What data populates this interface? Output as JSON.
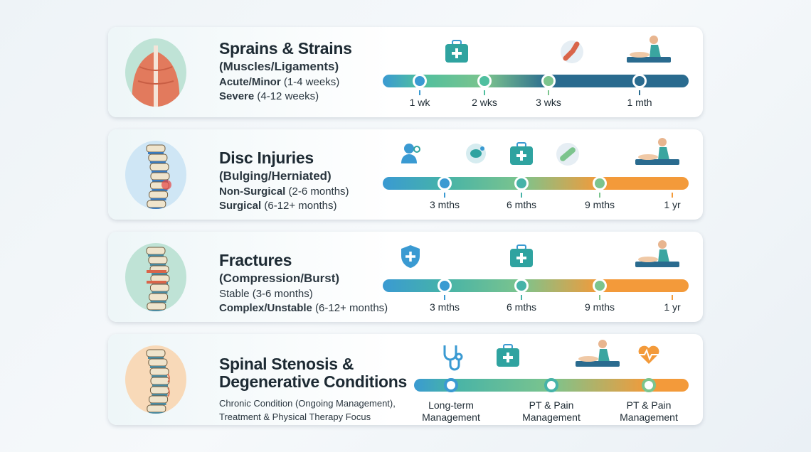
{
  "cards": [
    {
      "title": "Sprains & Strains",
      "subtitle": "(Muscles/Ligaments)",
      "lines": [
        {
          "bold": "Acute/Minor",
          "rest": " (1-4 weeks)"
        },
        {
          "bold": "Severe",
          "rest": " (4-12 weeks)"
        }
      ],
      "illustration": "back-muscles-illustration",
      "illustration_bg": "#bfe3d6",
      "bar_colors": [
        "#3a9ad2",
        "#4fbf9f",
        "#7cc48d",
        "#2a6b8f",
        "#2a6b8f"
      ],
      "milestones": [
        "1 wk",
        "2 wks",
        "3 wks",
        "1 mth"
      ],
      "icons": [
        "first-aid-kit-icon",
        "elbow-brace-icon",
        "physical-therapist-icon"
      ]
    },
    {
      "title": "Disc Injuries",
      "subtitle": "(Bulging/Herniated)",
      "lines": [
        {
          "bold": "Non-Surgical",
          "rest": " (2-6 months)"
        },
        {
          "bold": "Surgical",
          "rest": " (6-12+ months)"
        }
      ],
      "illustration": "herniated-disc-spine-illustration",
      "illustration_bg": "#cfe6f5",
      "bar_colors": [
        "#3a9ad2",
        "#46b3a8",
        "#7cc48d",
        "#f39a3a",
        "#f39a3a"
      ],
      "milestones": [
        "3 mths",
        "6 mths",
        "9 mths",
        "1 yr"
      ],
      "icons": [
        "doctor-consult-icon",
        "disc-icon",
        "first-aid-kit-icon",
        "bandage-icon",
        "physical-therapist-icon"
      ]
    },
    {
      "title": "Fractures",
      "subtitle": "(Compression/Burst)",
      "lines": [
        {
          "bold": "",
          "rest": "Stable (3-6 months)"
        },
        {
          "bold": "Complex/Unstable",
          "rest": " (6-12+ months)"
        }
      ],
      "illustration": "fractured-spine-illustration",
      "illustration_bg": "#bfe3d6",
      "bar_colors": [
        "#3a9ad2",
        "#46b3a8",
        "#7cc48d",
        "#f39a3a",
        "#f39a3a"
      ],
      "milestones": [
        "3 mths",
        "6 mths",
        "9 mths",
        "1 yr"
      ],
      "icons": [
        "shield-plus-icon",
        "first-aid-kit-icon",
        "physical-therapist-icon"
      ]
    },
    {
      "title": "Spinal Stenosis &",
      "title2": "Degenerative Conditions",
      "lines": [
        {
          "bold": "",
          "rest": "Chronic Condition (Ongoing Management),"
        },
        {
          "bold": "",
          "rest": "Treatment & Physical Therapy Focus"
        }
      ],
      "illustration": "degenerative-spine-illustration",
      "illustration_bg": "#f8d9b8",
      "bar_colors": [
        "#3a9ad2",
        "#46b3a8",
        "#7cc48d",
        "#f39a3a",
        "#f39a3a"
      ],
      "milestones": [
        [
          "Long-term",
          "Management"
        ],
        [
          "PT & Pain",
          "Management"
        ],
        [
          "PT & Pain",
          "Management"
        ]
      ],
      "icons": [
        "stethoscope-icon",
        "first-aid-kit-icon",
        "physical-therapist-icon",
        "heartbeat-icon"
      ]
    }
  ]
}
